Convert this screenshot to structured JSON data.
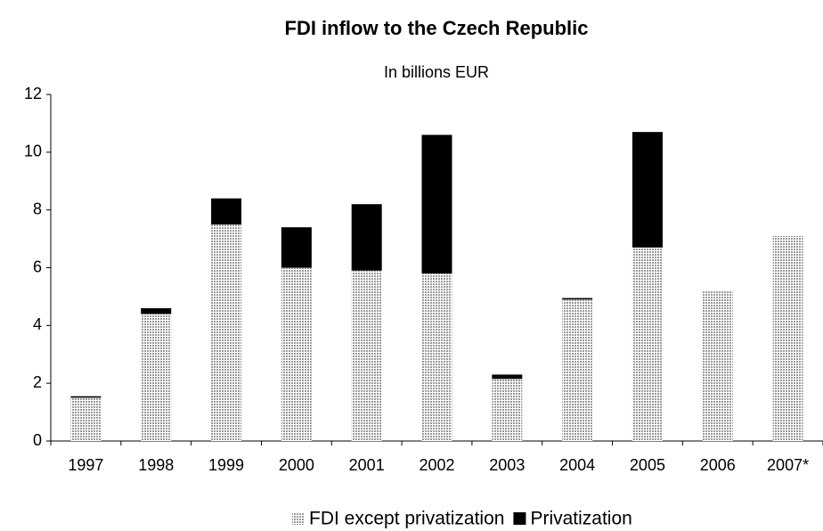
{
  "chart_data": {
    "type": "stacked_bar",
    "title": "FDI inflow to the Czech Republic",
    "subtitle": "In billions EUR",
    "categories": [
      "1997",
      "1998",
      "1999",
      "2000",
      "2001",
      "2002",
      "2003",
      "2004",
      "2005",
      "2006",
      "2007*"
    ],
    "series": [
      {
        "name": "FDI except privatization",
        "color": "#bfbfbf",
        "values": [
          1.5,
          4.4,
          7.5,
          6.0,
          5.9,
          5.8,
          2.15,
          4.9,
          6.7,
          5.2,
          7.1
        ]
      },
      {
        "name": "Privatization",
        "color": "#000000",
        "values": [
          0.05,
          0.2,
          0.9,
          1.4,
          2.3,
          4.8,
          0.15,
          0.05,
          4.0,
          0,
          0
        ]
      }
    ],
    "ylim": [
      0,
      12
    ],
    "yticks": [
      0,
      2,
      4,
      6,
      8,
      10,
      12
    ],
    "legend": "bottom"
  }
}
